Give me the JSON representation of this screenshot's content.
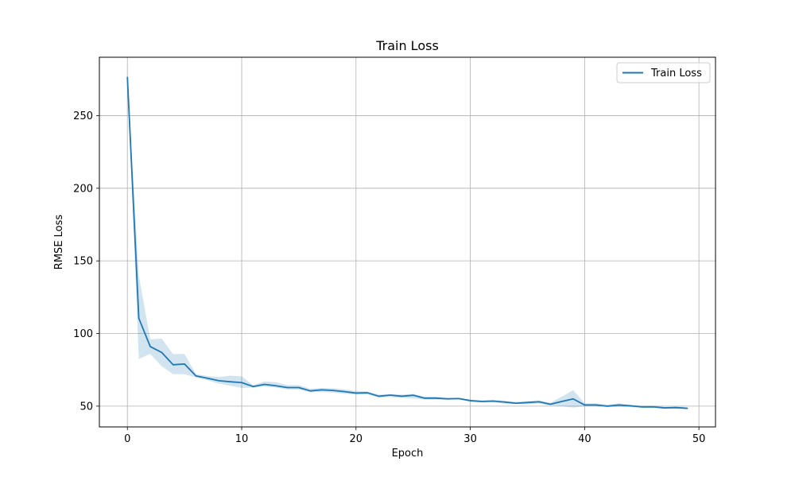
{
  "chart_data": {
    "type": "line",
    "title": "Train Loss",
    "xlabel": "Epoch",
    "ylabel": "RMSE Loss",
    "xlim": [
      -2.45,
      51.45
    ],
    "ylim": [
      35.7,
      290.2
    ],
    "xticks": [
      0,
      10,
      20,
      30,
      40,
      50
    ],
    "yticks": [
      50,
      100,
      150,
      200,
      250
    ],
    "grid": true,
    "legend_position": "top-right",
    "series": [
      {
        "name": "Train Loss",
        "color": "#1f77b4",
        "band_color": "#1f77b4",
        "x": [
          0,
          1,
          2,
          3,
          4,
          5,
          6,
          7,
          8,
          9,
          10,
          11,
          12,
          13,
          14,
          15,
          16,
          17,
          18,
          19,
          20,
          21,
          22,
          23,
          24,
          25,
          26,
          27,
          28,
          29,
          30,
          31,
          32,
          33,
          34,
          35,
          36,
          37,
          38,
          39,
          40,
          41,
          42,
          43,
          44,
          45,
          46,
          47,
          48,
          49
        ],
        "values": [
          276.5,
          110.5,
          91.0,
          87.0,
          78.5,
          79.0,
          70.8,
          69.2,
          67.5,
          66.8,
          66.2,
          63.5,
          65.0,
          64.0,
          62.8,
          62.8,
          60.5,
          61.2,
          60.8,
          60.0,
          59.0,
          59.2,
          56.8,
          57.6,
          56.8,
          57.5,
          55.5,
          55.5,
          55.0,
          55.2,
          53.8,
          53.2,
          53.5,
          52.8,
          52.0,
          52.5,
          53.0,
          51.3,
          53.2,
          55.0,
          50.8,
          50.8,
          50.0,
          50.8,
          50.2,
          49.5,
          49.5,
          48.8,
          49.0,
          48.5
        ],
        "lower": [
          276.5,
          82.5,
          86.0,
          77.5,
          72.0,
          72.0,
          69.8,
          67.8,
          65.5,
          64.0,
          62.5,
          62.8,
          63.5,
          62.8,
          61.5,
          61.5,
          59.5,
          59.8,
          59.3,
          58.5,
          58.0,
          58.0,
          56.0,
          56.3,
          55.8,
          55.3,
          54.5,
          54.5,
          54.5,
          54.8,
          53.0,
          52.5,
          52.5,
          51.8,
          51.5,
          51.3,
          51.8,
          50.5,
          50.0,
          49.0,
          50.0,
          50.0,
          49.3,
          49.5,
          49.3,
          48.8,
          48.8,
          48.2,
          48.2,
          47.8
        ],
        "upper": [
          276.5,
          140.0,
          96.0,
          96.5,
          85.8,
          86.0,
          72.0,
          70.8,
          70.0,
          71.0,
          70.5,
          64.5,
          67.0,
          66.5,
          64.5,
          64.5,
          62.0,
          62.5,
          62.3,
          61.5,
          60.5,
          60.0,
          58.0,
          58.3,
          58.0,
          58.5,
          56.5,
          56.5,
          56.0,
          55.8,
          54.5,
          54.0,
          54.3,
          53.8,
          53.0,
          53.5,
          54.0,
          52.3,
          56.5,
          61.0,
          52.0,
          52.0,
          51.0,
          52.0,
          51.0,
          50.3,
          50.3,
          49.5,
          49.8,
          49.3
        ]
      }
    ]
  }
}
